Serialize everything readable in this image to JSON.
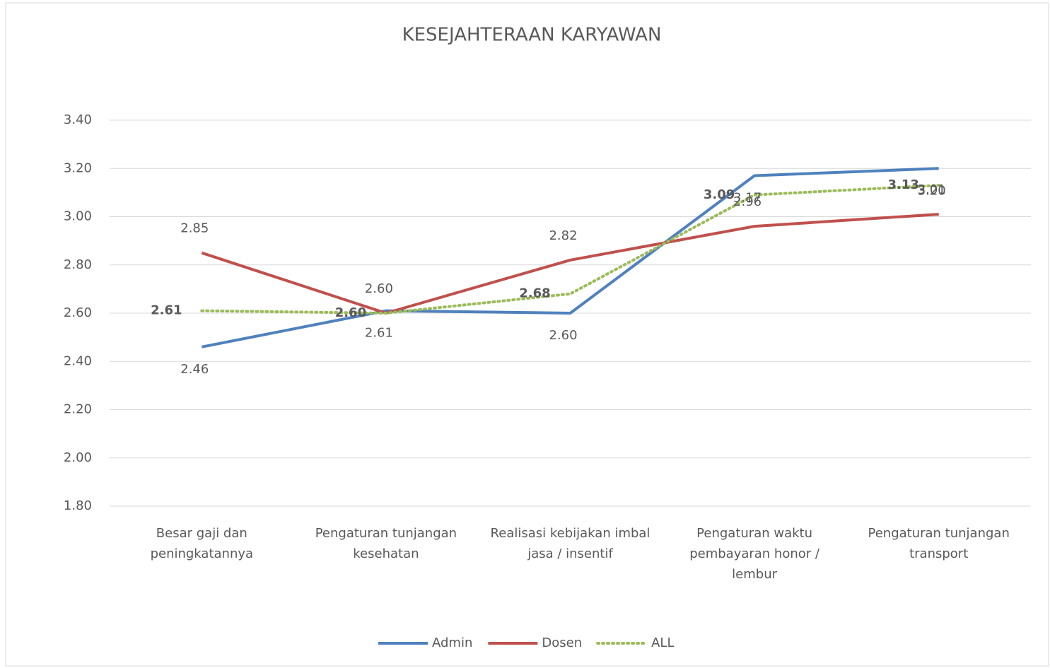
{
  "chart_data": {
    "type": "line",
    "title": "KESEJAHTERAAN KARYAWAN",
    "categories": [
      "Besar gaji dan peningkatannya",
      "Pengaturan  tunjangan kesehatan",
      "Realisasi kebijakan imbal jasa / insentif",
      "Pengaturan waktu pembayaran honor / lembur",
      "Pengaturan tunjangan transport"
    ],
    "series": [
      {
        "name": "Admin",
        "color": "#4f81bd",
        "label_color": "#2e75b6",
        "values": [
          2.46,
          2.61,
          2.6,
          3.17,
          3.2
        ],
        "value_labels": [
          "2.46",
          "2.61",
          "2.60",
          "3.17",
          "3.20"
        ]
      },
      {
        "name": "Dosen",
        "color": "#c0504d",
        "label_color": "#c00000",
        "values": [
          2.85,
          2.6,
          2.82,
          2.96,
          3.01
        ],
        "value_labels": [
          "2.85",
          "2.60",
          "2.82",
          "2.96",
          "3.01"
        ]
      },
      {
        "name": "ALL",
        "color": "#9bbb59",
        "label_color": "#00b050",
        "dashed": true,
        "values": [
          2.61,
          2.6,
          2.68,
          3.09,
          3.13
        ],
        "value_labels": [
          "2.61",
          "2.60",
          "2.68",
          "3.09",
          "3.13"
        ]
      }
    ],
    "ylim": [
      1.8,
      3.4
    ],
    "yticks": [
      {
        "value": 1.8,
        "label": "1.80"
      },
      {
        "value": 2,
        "label": "2.00"
      },
      {
        "value": 2.2,
        "label": "2.20"
      },
      {
        "value": 2.4,
        "label": "2.40"
      },
      {
        "value": 2.6,
        "label": "2.60"
      },
      {
        "value": 2.8,
        "label": "2.80"
      },
      {
        "value": 3,
        "label": "3.00"
      },
      {
        "value": 3.2,
        "label": "3.20"
      },
      {
        "value": 3.4,
        "label": "3.40"
      }
    ],
    "grid": true,
    "legend": "bottom"
  }
}
